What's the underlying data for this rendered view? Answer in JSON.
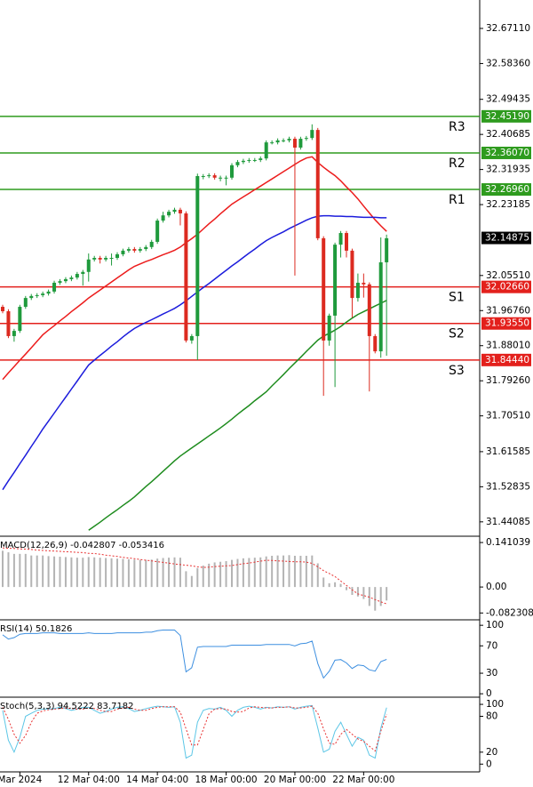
{
  "chart_data": [
    {
      "type": "candlestick",
      "categories": [
        null,
        null,
        null,
        "Mar 2024",
        null,
        null,
        null,
        null,
        null,
        null,
        null,
        null,
        null,
        null,
        null,
        "12 Mar 04:00",
        null,
        null,
        null,
        null,
        null,
        null,
        null,
        null,
        null,
        null,
        null,
        "14 Mar 04:00",
        null,
        null,
        null,
        null,
        null,
        null,
        null,
        null,
        null,
        null,
        null,
        "18 Mar 00:00",
        null,
        null,
        null,
        null,
        null,
        null,
        null,
        null,
        null,
        null,
        null,
        "20 Mar 00:00",
        null,
        null,
        null,
        null,
        null,
        null,
        null,
        null,
        null,
        null,
        null,
        "22 Mar 00:00",
        null,
        null,
        null,
        null
      ],
      "open": [
        31.977,
        31.966,
        31.904,
        31.917,
        31.977,
        31.999,
        32.004,
        32.006,
        32.01,
        32.015,
        32.037,
        32.041,
        32.046,
        32.05,
        32.059,
        32.064,
        32.095,
        32.099,
        32.095,
        32.099,
        32.099,
        32.108,
        32.117,
        32.121,
        32.117,
        32.121,
        32.126,
        32.139,
        32.192,
        32.205,
        32.214,
        32.219,
        32.21,
        31.893,
        31.904,
        32.303,
        32.303,
        32.305,
        32.299,
        32.299,
        32.299,
        32.33,
        32.338,
        32.341,
        32.343,
        32.343,
        32.347,
        32.387,
        32.387,
        32.392,
        32.392,
        32.396,
        32.374,
        32.396,
        32.398,
        32.418,
        32.148,
        31.893,
        31.955,
        32.132,
        32.161,
        32.117,
        31.999,
        32.037,
        32.033,
        31.904,
        31.866,
        32.088
      ],
      "high": [
        31.982,
        31.971,
        31.922,
        31.982,
        32.004,
        32.009,
        32.011,
        32.015,
        32.02,
        32.042,
        32.046,
        32.051,
        32.055,
        32.064,
        32.069,
        32.11,
        32.104,
        32.104,
        32.104,
        32.11,
        32.113,
        32.122,
        32.126,
        32.126,
        32.126,
        32.131,
        32.144,
        32.197,
        32.214,
        32.219,
        32.224,
        32.224,
        32.215,
        31.909,
        32.309,
        32.308,
        32.31,
        32.31,
        32.304,
        32.304,
        32.335,
        32.343,
        32.346,
        32.348,
        32.348,
        32.352,
        32.392,
        32.392,
        32.397,
        32.397,
        32.401,
        32.401,
        32.401,
        32.403,
        32.432,
        32.423,
        32.153,
        31.96,
        32.137,
        32.166,
        32.166,
        32.122,
        32.06,
        32.06,
        32.038,
        31.909,
        32.15,
        32.157
      ],
      "low": [
        31.961,
        31.899,
        31.89,
        31.912,
        31.972,
        31.994,
        31.999,
        32.001,
        32.005,
        32.01,
        32.032,
        32.036,
        32.041,
        32.045,
        32.03,
        32.04,
        32.09,
        32.085,
        32.09,
        32.08,
        32.094,
        32.103,
        32.112,
        32.112,
        32.112,
        32.116,
        32.121,
        32.134,
        32.187,
        32.2,
        32.209,
        32.18,
        31.888,
        31.885,
        31.844,
        32.295,
        32.298,
        32.294,
        32.29,
        32.28,
        32.294,
        32.325,
        32.333,
        32.336,
        32.338,
        32.338,
        32.342,
        32.382,
        32.382,
        32.387,
        32.387,
        32.055,
        32.369,
        32.391,
        32.393,
        32.143,
        31.755,
        31.88,
        31.777,
        32.1,
        32.1,
        31.95,
        31.99,
        32.0,
        31.766,
        31.861,
        31.85,
        31.855
      ],
      "close": [
        31.966,
        31.904,
        31.917,
        31.977,
        31.999,
        32.004,
        32.006,
        32.01,
        32.015,
        32.037,
        32.041,
        32.046,
        32.05,
        32.059,
        32.064,
        32.095,
        32.099,
        32.095,
        32.099,
        32.099,
        32.108,
        32.117,
        32.121,
        32.117,
        32.121,
        32.126,
        32.139,
        32.192,
        32.205,
        32.214,
        32.219,
        32.21,
        31.893,
        31.904,
        32.303,
        32.303,
        32.305,
        32.299,
        32.299,
        32.299,
        32.33,
        32.338,
        32.341,
        32.343,
        32.343,
        32.347,
        32.387,
        32.387,
        32.392,
        32.392,
        32.396,
        32.374,
        32.396,
        32.398,
        32.418,
        32.148,
        31.893,
        31.955,
        32.132,
        32.161,
        32.117,
        31.999,
        32.037,
        32.033,
        31.904,
        31.866,
        32.088,
        32.148
      ],
      "up_color": "#1f9a3c",
      "down_color": "#dc2a20",
      "series": [
        {
          "color": "#ec1c1c",
          "values": [
            31.796,
            31.812,
            31.828,
            31.844,
            31.859,
            31.875,
            31.891,
            31.907,
            31.919,
            31.93,
            31.942,
            31.953,
            31.965,
            31.976,
            31.987,
            31.999,
            32.009,
            32.019,
            32.029,
            32.039,
            32.049,
            32.059,
            32.069,
            32.078,
            32.084,
            32.09,
            32.095,
            32.101,
            32.107,
            32.112,
            32.118,
            32.126,
            32.137,
            32.147,
            32.158,
            32.171,
            32.184,
            32.196,
            32.209,
            32.221,
            32.233,
            32.242,
            32.251,
            32.26,
            32.269,
            32.278,
            32.287,
            32.296,
            32.305,
            32.314,
            32.323,
            32.332,
            32.341,
            32.348,
            32.351,
            32.337,
            32.325,
            32.314,
            32.304,
            32.291,
            32.276,
            32.262,
            32.246,
            32.228,
            32.211,
            32.194,
            32.179,
            32.165
          ]
        },
        {
          "color": "#1c1cdc",
          "values": [
            31.521,
            31.543,
            31.564,
            31.586,
            31.607,
            31.629,
            31.65,
            31.672,
            31.692,
            31.712,
            31.732,
            31.752,
            31.772,
            31.792,
            31.812,
            31.832,
            31.844,
            31.856,
            31.867,
            31.879,
            31.89,
            31.902,
            31.913,
            31.923,
            31.931,
            31.938,
            31.945,
            31.952,
            31.959,
            31.966,
            31.973,
            31.982,
            31.992,
            32.003,
            32.014,
            32.025,
            32.035,
            32.046,
            32.057,
            32.068,
            32.079,
            32.089,
            32.1,
            32.111,
            32.121,
            32.132,
            32.142,
            32.15,
            32.157,
            32.164,
            32.172,
            32.179,
            32.186,
            32.193,
            32.199,
            32.203,
            32.204,
            32.204,
            32.203,
            32.203,
            32.202,
            32.202,
            32.201,
            32.2,
            32.2,
            32.2,
            32.199,
            32.199
          ]
        },
        {
          "color": "#1e8c1e",
          "values": [
            null,
            null,
            null,
            null,
            null,
            null,
            null,
            null,
            null,
            null,
            null,
            null,
            null,
            null,
            null,
            31.42,
            31.43,
            31.44,
            31.451,
            31.461,
            31.471,
            31.482,
            31.492,
            31.503,
            31.516,
            31.529,
            31.541,
            31.554,
            31.567,
            31.58,
            31.593,
            31.605,
            31.615,
            31.625,
            31.635,
            31.645,
            31.655,
            31.665,
            31.675,
            31.686,
            31.697,
            31.709,
            31.72,
            31.731,
            31.743,
            31.754,
            31.765,
            31.78,
            31.794,
            31.808,
            31.823,
            31.837,
            31.851,
            31.866,
            31.88,
            31.894,
            31.904,
            31.911,
            31.919,
            31.928,
            31.939,
            31.949,
            31.958,
            31.965,
            31.972,
            31.979,
            31.986,
            31.993
          ]
        }
      ],
      "levels": [
        {
          "name": "R3",
          "value": 32.4519,
          "label": "32.45190",
          "color": "#2e9b1e"
        },
        {
          "name": "R2",
          "value": 32.3607,
          "label": "32.36070",
          "color": "#2e9b1e"
        },
        {
          "name": "R1",
          "value": 32.2696,
          "label": "32.26960",
          "color": "#2e9b1e"
        },
        {
          "name": "S1",
          "value": 32.0266,
          "label": "32.02660",
          "color": "#e3201c"
        },
        {
          "name": "S2",
          "value": 31.9355,
          "label": "31.93550",
          "color": "#e3201c"
        },
        {
          "name": "S3",
          "value": 31.8444,
          "label": "31.84440",
          "color": "#e3201c"
        }
      ],
      "last": {
        "value": 32.14875,
        "label": "32.14875"
      },
      "ylim": [
        31.405,
        32.742
      ],
      "yticks": [
        {
          "value": 32.6711,
          "label": "32.67110"
        },
        {
          "value": 32.5836,
          "label": "32.58360"
        },
        32.49435,
        32.40685,
        32.31935,
        32.23185,
        {
          "value": 32.0551,
          "label": "32.05510"
        },
        {
          "value": 31.9676,
          "label": "31.96760"
        },
        {
          "value": 31.8801,
          "label": "31.88010"
        },
        {
          "value": 31.7926,
          "label": "31.79260"
        },
        {
          "value": 31.7051,
          "label": "31.70510"
        },
        31.61585,
        31.52835,
        31.44085
      ]
    },
    {
      "type": "macd",
      "title": "MACD(12,26,9) -0.042807 -0.053416",
      "ylim": [
        -0.104,
        0.161
      ],
      "yticks": [
        0.141039,
        {
          "value": 0,
          "label": "0.00"
        },
        -0.082308
      ],
      "series": [
        {
          "style": "bar",
          "color": "#b4b4b4",
          "values": [
            0.115,
            0.11,
            0.105,
            0.105,
            0.105,
            0.1,
            0.1,
            0.1,
            0.098,
            0.097,
            0.096,
            0.095,
            0.094,
            0.093,
            0.093,
            0.095,
            0.094,
            0.093,
            0.092,
            0.091,
            0.09,
            0.089,
            0.088,
            0.087,
            0.086,
            0.086,
            0.087,
            0.09,
            0.092,
            0.093,
            0.094,
            0.093,
            0.05,
            0.035,
            0.06,
            0.068,
            0.074,
            0.078,
            0.08,
            0.082,
            0.086,
            0.089,
            0.091,
            0.092,
            0.093,
            0.094,
            0.097,
            0.099,
            0.1,
            0.1,
            0.101,
            0.099,
            0.099,
            0.099,
            0.1,
            0.075,
            0.03,
            0.012,
            0.015,
            0.01,
            -0.01,
            -0.025,
            -0.03,
            -0.038,
            -0.06,
            -0.075,
            -0.06,
            -0.042807
          ]
        },
        {
          "style": "dotted",
          "color": "#e83030",
          "values": [
            0.124,
            0.123,
            0.122,
            0.121,
            0.12,
            0.119,
            0.117,
            0.116,
            0.115,
            0.114,
            0.113,
            0.112,
            0.111,
            0.11,
            0.109,
            0.107,
            0.106,
            0.104,
            0.101,
            0.099,
            0.097,
            0.094,
            0.092,
            0.09,
            0.087,
            0.085,
            0.083,
            0.08,
            0.078,
            0.076,
            0.073,
            0.071,
            0.069,
            0.067,
            0.064,
            0.062,
            0.063,
            0.065,
            0.066,
            0.067,
            0.068,
            0.071,
            0.074,
            0.076,
            0.079,
            0.082,
            0.085,
            0.084,
            0.083,
            0.082,
            0.081,
            0.08,
            0.08,
            0.079,
            0.075,
            0.064,
            0.052,
            0.043,
            0.033,
            0.019,
            0.005,
            -0.009,
            -0.022,
            -0.027,
            -0.032,
            -0.04,
            -0.047,
            -0.053416
          ]
        }
      ]
    },
    {
      "type": "line",
      "title": "RSI(14) 50.1826",
      "ylim": [
        -5,
        108
      ],
      "yticks": [
        100,
        70,
        30,
        0
      ],
      "series": [
        {
          "style": "solid",
          "color": "#3d8fe0",
          "values": [
            86,
            80,
            82,
            87,
            88,
            88,
            88,
            89,
            89,
            89,
            88,
            88,
            88,
            88,
            88,
            89,
            88,
            88,
            88,
            88,
            89,
            89,
            89,
            89,
            89,
            90,
            90,
            92,
            93,
            93,
            93,
            85,
            32,
            38,
            68,
            69,
            69,
            69,
            69,
            69,
            71,
            71,
            71,
            71,
            71,
            71,
            72,
            72,
            72,
            72,
            72,
            70,
            73,
            74,
            77,
            44,
            23,
            33,
            49,
            50,
            45,
            37,
            42,
            41,
            35,
            33,
            47,
            50.1826
          ]
        }
      ]
    },
    {
      "type": "line",
      "title": "Stoch(5,3,3) 94.5222 83.7182",
      "ylim": [
        -13,
        112
      ],
      "yticks": [
        100,
        80,
        20,
        0
      ],
      "series": [
        {
          "style": "solid",
          "color": "#5cc6e6",
          "values": [
            90,
            40,
            20,
            45,
            80,
            85,
            90,
            92,
            92,
            93,
            95,
            93,
            90,
            92,
            95,
            95,
            90,
            85,
            88,
            92,
            95,
            96,
            93,
            88,
            90,
            93,
            95,
            97,
            96,
            95,
            96,
            70,
            10,
            15,
            70,
            90,
            93,
            92,
            95,
            90,
            80,
            90,
            95,
            97,
            95,
            92,
            95,
            94,
            96,
            95,
            96,
            92,
            95,
            97,
            98,
            60,
            20,
            25,
            55,
            70,
            50,
            30,
            45,
            40,
            15,
            10,
            60,
            94.5222
          ]
        },
        {
          "style": "dotted",
          "color": "#e83030",
          "values": [
            95,
            75,
            50,
            35,
            48,
            70,
            85,
            89,
            91,
            92,
            93,
            94,
            93,
            92,
            92,
            94,
            93,
            90,
            88,
            88,
            92,
            94,
            95,
            92,
            90,
            90,
            93,
            95,
            96,
            96,
            96,
            87,
            59,
            32,
            32,
            58,
            84,
            92,
            93,
            92,
            88,
            87,
            88,
            94,
            96,
            95,
            94,
            94,
            95,
            95,
            96,
            94,
            94,
            95,
            97,
            85,
            59,
            35,
            33,
            50,
            58,
            50,
            42,
            38,
            30,
            22,
            55,
            83.7182
          ]
        }
      ]
    }
  ]
}
